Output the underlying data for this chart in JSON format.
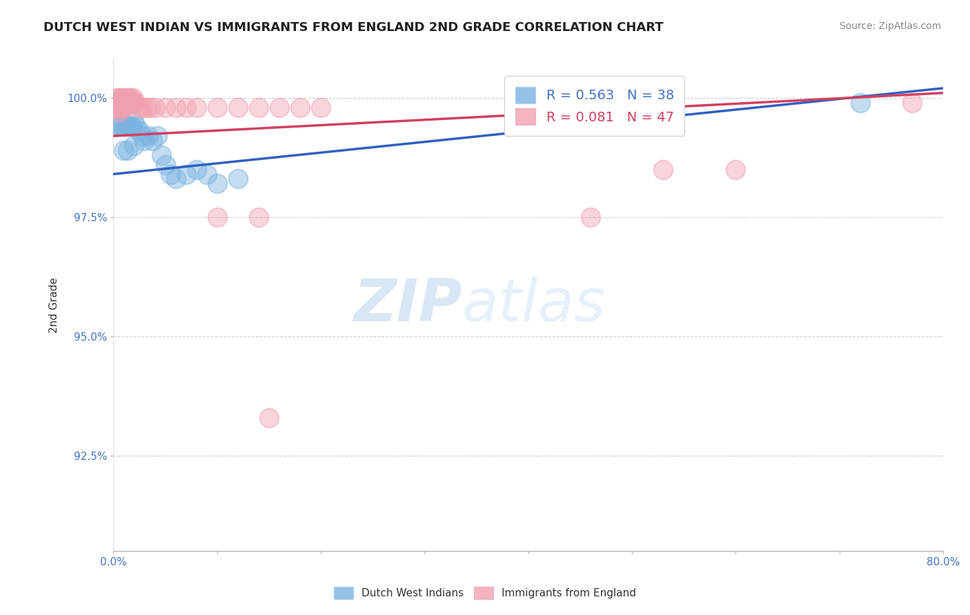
{
  "title": "DUTCH WEST INDIAN VS IMMIGRANTS FROM ENGLAND 2ND GRADE CORRELATION CHART",
  "source_text": "Source: ZipAtlas.com",
  "ylabel": "2nd Grade",
  "xlim": [
    0.0,
    0.8
  ],
  "ylim": [
    0.905,
    1.008
  ],
  "xticks": [
    0.0,
    0.1,
    0.2,
    0.3,
    0.4,
    0.5,
    0.6,
    0.7,
    0.8
  ],
  "xticklabels": [
    "0.0%",
    "",
    "",
    "",
    "",
    "",
    "",
    "",
    "80.0%"
  ],
  "yticks": [
    0.925,
    0.95,
    0.975,
    1.0
  ],
  "yticklabels": [
    "92.5%",
    "95.0%",
    "97.5%",
    "100.0%"
  ],
  "grid_color": "#cccccc",
  "background_color": "#ffffff",
  "blue_R": 0.563,
  "blue_N": 38,
  "pink_R": 0.081,
  "pink_N": 47,
  "blue_color": "#7ab3e0",
  "pink_color": "#f0a0b0",
  "blue_line_color": "#3060c0",
  "pink_line_color": "#d04060",
  "legend_label_blue": "Dutch West Indians",
  "legend_label_pink": "Immigrants from England",
  "blue_x": [
    0.004,
    0.004,
    0.006,
    0.006,
    0.008,
    0.008,
    0.01,
    0.01,
    0.01,
    0.012,
    0.012,
    0.014,
    0.014,
    0.014,
    0.016,
    0.016,
    0.018,
    0.018,
    0.02,
    0.02,
    0.022,
    0.025,
    0.028,
    0.03,
    0.034,
    0.038,
    0.042,
    0.046,
    0.05,
    0.055,
    0.06,
    0.07,
    0.08,
    0.09,
    0.1,
    0.12,
    0.5,
    0.72
  ],
  "blue_y": [
    0.999,
    0.994,
    0.999,
    0.994,
    0.999,
    0.994,
    0.999,
    0.994,
    0.989,
    0.999,
    0.994,
    0.999,
    0.994,
    0.989,
    0.999,
    0.994,
    0.999,
    0.994,
    0.995,
    0.99,
    0.994,
    0.993,
    0.992,
    0.991,
    0.992,
    0.991,
    0.992,
    0.988,
    0.986,
    0.984,
    0.983,
    0.984,
    0.985,
    0.984,
    0.982,
    0.983,
    0.998,
    0.999
  ],
  "pink_x": [
    0.003,
    0.003,
    0.003,
    0.005,
    0.005,
    0.005,
    0.005,
    0.007,
    0.007,
    0.007,
    0.009,
    0.009,
    0.009,
    0.011,
    0.011,
    0.011,
    0.013,
    0.013,
    0.015,
    0.015,
    0.017,
    0.017,
    0.019,
    0.02,
    0.022,
    0.025,
    0.028,
    0.032,
    0.036,
    0.04,
    0.05,
    0.06,
    0.07,
    0.08,
    0.1,
    0.12,
    0.14,
    0.16,
    0.18,
    0.2,
    0.14,
    0.46,
    0.53,
    0.6,
    0.77,
    0.15,
    0.1
  ],
  "pink_y": [
    1.0,
    0.999,
    0.998,
    1.0,
    0.999,
    0.998,
    0.997,
    1.0,
    0.999,
    0.998,
    1.0,
    0.999,
    0.998,
    1.0,
    0.999,
    0.998,
    1.0,
    0.999,
    1.0,
    0.999,
    1.0,
    0.999,
    1.0,
    0.999,
    0.999,
    0.998,
    0.998,
    0.998,
    0.998,
    0.998,
    0.998,
    0.998,
    0.998,
    0.998,
    0.998,
    0.998,
    0.998,
    0.998,
    0.998,
    0.998,
    0.975,
    0.975,
    0.985,
    0.985,
    0.999,
    0.933,
    0.975
  ]
}
